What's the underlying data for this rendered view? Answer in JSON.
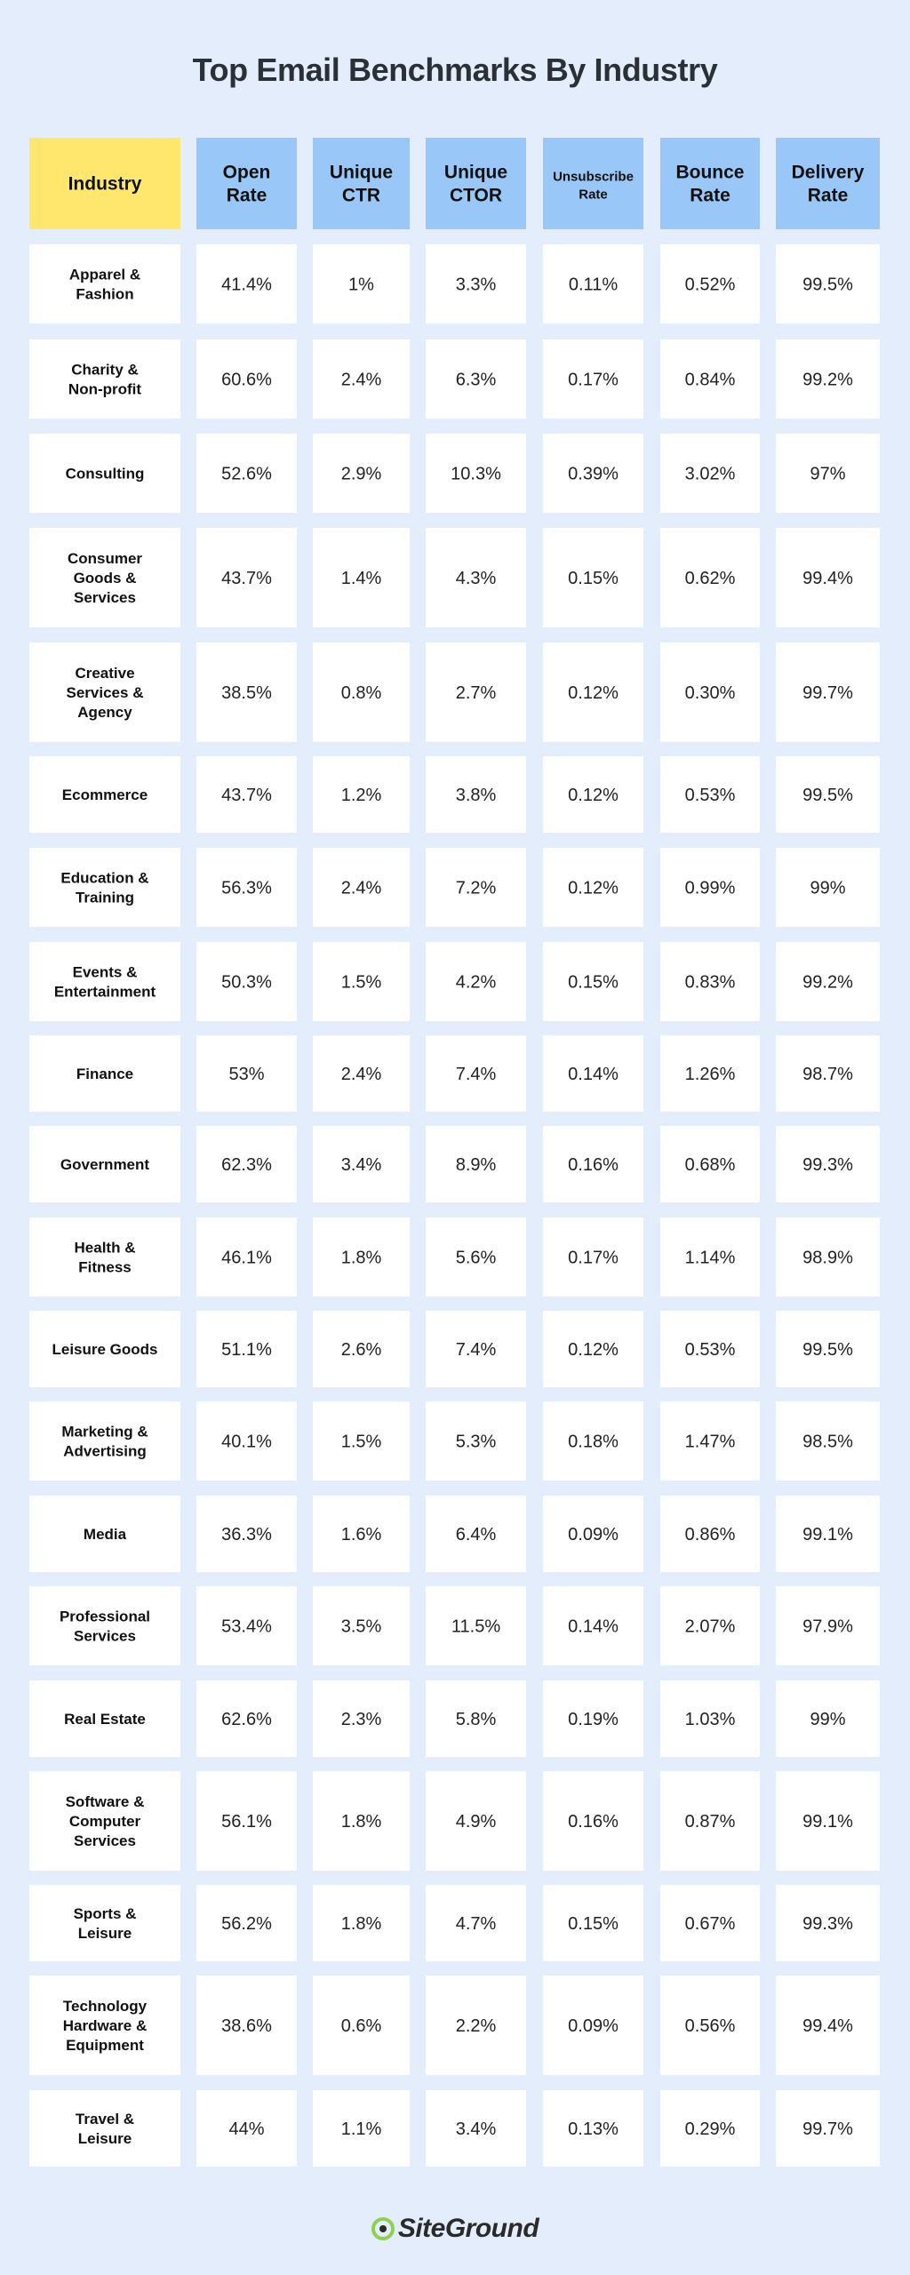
{
  "title": "Top Email Benchmarks By Industry",
  "brand": {
    "name": "SiteGround",
    "icon": "siteground-logo-icon",
    "icon_color": "#8fd14f"
  },
  "colors": {
    "background": "#e3edfb",
    "industry_header": "#ffe66d",
    "metric_header": "#99c7f7",
    "cell": "#ffffff"
  },
  "chart_data": {
    "type": "table",
    "title": "Top Email Benchmarks By Industry",
    "columns": [
      "Industry",
      "Open Rate",
      "Unique CTR",
      "Unique CTOR",
      "Unsubscribe Rate",
      "Bounce Rate",
      "Delivery Rate"
    ],
    "rows": [
      [
        "Apparel & Fashion",
        "41.4%",
        "1%",
        "3.3%",
        "0.11%",
        "0.52%",
        "99.5%"
      ],
      [
        "Charity & Non-profit",
        "60.6%",
        "2.4%",
        "6.3%",
        "0.17%",
        "0.84%",
        "99.2%"
      ],
      [
        "Consulting",
        "52.6%",
        "2.9%",
        "10.3%",
        "0.39%",
        "3.02%",
        "97%"
      ],
      [
        "Consumer Goods & Services",
        "43.7%",
        "1.4%",
        "4.3%",
        "0.15%",
        "0.62%",
        "99.4%"
      ],
      [
        "Creative Services & Agency",
        "38.5%",
        "0.8%",
        "2.7%",
        "0.12%",
        "0.30%",
        "99.7%"
      ],
      [
        "Ecommerce",
        "43.7%",
        "1.2%",
        "3.8%",
        "0.12%",
        "0.53%",
        "99.5%"
      ],
      [
        "Education & Training",
        "56.3%",
        "2.4%",
        "7.2%",
        "0.12%",
        "0.99%",
        "99%"
      ],
      [
        "Events & Entertainment",
        "50.3%",
        "1.5%",
        "4.2%",
        "0.15%",
        "0.83%",
        "99.2%"
      ],
      [
        "Finance",
        "53%",
        "2.4%",
        "7.4%",
        "0.14%",
        "1.26%",
        "98.7%"
      ],
      [
        "Government",
        "62.3%",
        "3.4%",
        "8.9%",
        "0.16%",
        "0.68%",
        "99.3%"
      ],
      [
        "Health & Fitness",
        "46.1%",
        "1.8%",
        "5.6%",
        "0.17%",
        "1.14%",
        "98.9%"
      ],
      [
        "Leisure Goods",
        "51.1%",
        "2.6%",
        "7.4%",
        "0.12%",
        "0.53%",
        "99.5%"
      ],
      [
        "Marketing & Advertising",
        "40.1%",
        "1.5%",
        "5.3%",
        "0.18%",
        "1.47%",
        "98.5%"
      ],
      [
        "Media",
        "36.3%",
        "1.6%",
        "6.4%",
        "0.09%",
        "0.86%",
        "99.1%"
      ],
      [
        "Professional Services",
        "53.4%",
        "3.5%",
        "11.5%",
        "0.14%",
        "2.07%",
        "97.9%"
      ],
      [
        "Real Estate",
        "62.6%",
        "2.3%",
        "5.8%",
        "0.19%",
        "1.03%",
        "99%"
      ],
      [
        "Software & Computer Services",
        "56.1%",
        "1.8%",
        "4.9%",
        "0.16%",
        "0.87%",
        "99.1%"
      ],
      [
        "Sports & Leisure",
        "56.2%",
        "1.8%",
        "4.7%",
        "0.15%",
        "0.67%",
        "99.3%"
      ],
      [
        "Technology Hardware & Equipment",
        "38.6%",
        "0.6%",
        "2.2%",
        "0.09%",
        "0.56%",
        "99.4%"
      ],
      [
        "Travel & Leisure",
        "44%",
        "1.1%",
        "3.4%",
        "0.13%",
        "0.29%",
        "99.7%"
      ]
    ]
  }
}
